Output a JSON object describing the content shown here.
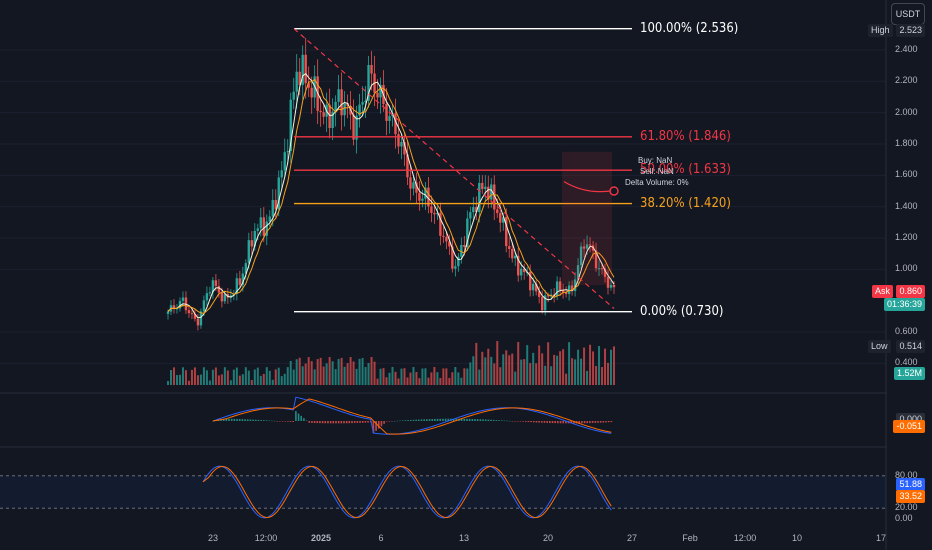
{
  "quote_currency": "USDT",
  "fib_levels": [
    {
      "label": "100.00% (2.536)",
      "price": 2.536,
      "color": "#ffffff"
    },
    {
      "label": "61.80% (1.846)",
      "price": 1.846,
      "color": "#f23645"
    },
    {
      "label": "50.00% (1.633)",
      "price": 1.633,
      "color": "#f23645"
    },
    {
      "label": "38.20% (1.420)",
      "price": 1.42,
      "color": "#f7a21b"
    },
    {
      "label": "0.00% (0.730)",
      "price": 0.73,
      "color": "#ffffff"
    }
  ],
  "info_box": {
    "buy": "Buy: NaN",
    "sell": "Sell: NaN",
    "delta": "Delta Volume: 0%"
  },
  "price_tags": {
    "high_label": "High",
    "high_value": "2.523",
    "ask_label": "Ask",
    "ask_value": "0.860",
    "countdown": "01:36:39",
    "low_label": "Low",
    "low_value": "0.514",
    "volume_value": "1.52M",
    "macd_value_1": "0.000",
    "macd_value_2": "-0.051",
    "stoch_k": "51.88",
    "stoch_d": "33.52"
  },
  "colors": {
    "up": "#26a69a",
    "down": "#ef5350",
    "ma_fast": "#f5f5dc",
    "ma_slow": "#f7a21b",
    "macd": "#2962ff",
    "signal": "#ff6d00",
    "stoch_k": "#2962ff",
    "stoch_d": "#ff6d00"
  },
  "chart_data": {
    "type": "candlestick",
    "price_axis_ticks": [
      "2.400",
      "2.200",
      "2.000",
      "1.800",
      "1.600",
      "1.400",
      "1.200",
      "1.000",
      "0.600",
      "0.400"
    ],
    "stoch_axis_ticks": [
      "80.00",
      "20.00",
      "0.00"
    ],
    "time_axis_ticks": [
      "23",
      "12:00",
      "2025",
      "6",
      "13",
      "20",
      "27",
      "Feb",
      "12:00",
      "10",
      "17"
    ],
    "close_path": [
      {
        "t": "Dec 20",
        "price": 0.73
      },
      {
        "t": "Dec 22",
        "price": 0.8
      },
      {
        "t": "Dec 23",
        "price": 0.65
      },
      {
        "t": "Dec 24",
        "price": 0.92
      },
      {
        "t": "Dec 26",
        "price": 0.8
      },
      {
        "t": "Dec 27",
        "price": 0.92
      },
      {
        "t": "Dec 29",
        "price": 1.25
      },
      {
        "t": "Dec 30",
        "price": 1.3
      },
      {
        "t": "Dec 31",
        "price": 1.65
      },
      {
        "t": "Jan 2",
        "price": 2.3
      },
      {
        "t": "Jan 3",
        "price": 2.15
      },
      {
        "t": "Jan 5",
        "price": 1.95
      },
      {
        "t": "Jan 6",
        "price": 2.1
      },
      {
        "t": "Jan 7",
        "price": 1.9
      },
      {
        "t": "Jan 9",
        "price": 2.25
      },
      {
        "t": "Jan 10",
        "price": 2.05
      },
      {
        "t": "Jan 11",
        "price": 1.85
      },
      {
        "t": "Jan 12",
        "price": 1.5
      },
      {
        "t": "Jan 13",
        "price": 1.45
      },
      {
        "t": "Jan 14",
        "price": 1.25
      },
      {
        "t": "Jan 16",
        "price": 1.0
      },
      {
        "t": "Jan 17",
        "price": 1.35
      },
      {
        "t": "Jan 18",
        "price": 1.55
      },
      {
        "t": "Jan 19",
        "price": 1.35
      },
      {
        "t": "Jan 20",
        "price": 1.05
      },
      {
        "t": "Jan 21",
        "price": 0.95
      },
      {
        "t": "Jan 22",
        "price": 0.78
      },
      {
        "t": "Jan 23",
        "price": 0.88
      },
      {
        "t": "Jan 24",
        "price": 0.85
      },
      {
        "t": "Jan 25",
        "price": 1.2
      },
      {
        "t": "Jan 26",
        "price": 1.0
      },
      {
        "t": "Jan 27",
        "price": 0.86
      }
    ],
    "last_price": 0.86,
    "high": 2.523,
    "low": 0.514,
    "volume_last": "1.52M"
  }
}
